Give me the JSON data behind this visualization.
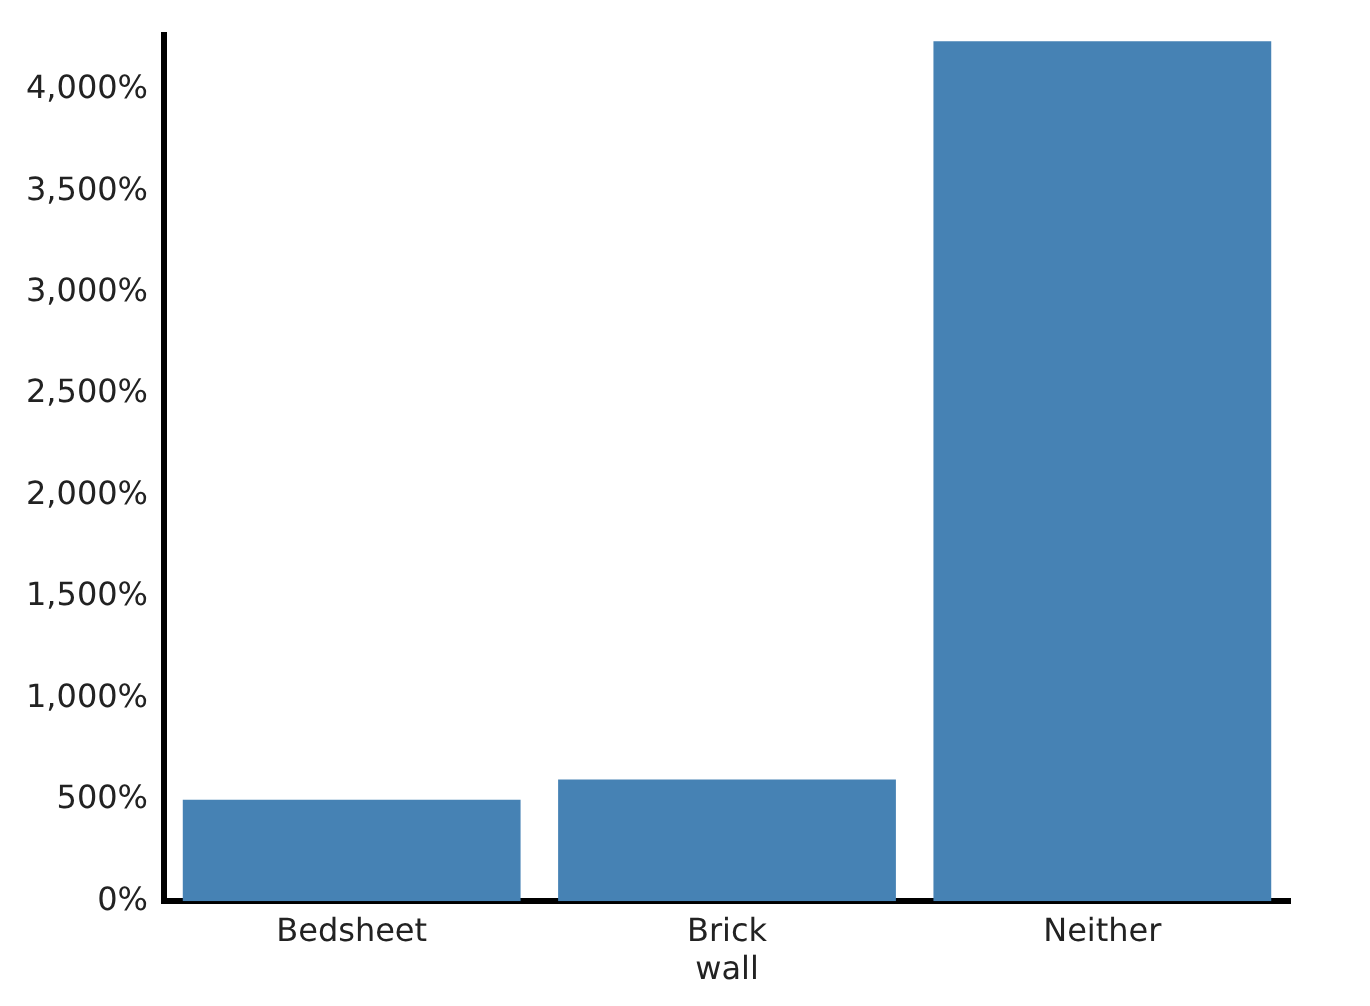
{
  "chart_data": {
    "type": "bar",
    "categories": [
      "Bedsheet",
      "Brick wall",
      "Neither"
    ],
    "values": [
      500,
      600,
      4240
    ],
    "color": "#4682b4",
    "ylim": [
      0,
      4270
    ],
    "yticks": [
      {
        "value": 0,
        "label": "0%"
      },
      {
        "value": 500,
        "label": "500%"
      },
      {
        "value": 1000,
        "label": "1,000%"
      },
      {
        "value": 1500,
        "label": "1,500%"
      },
      {
        "value": 2000,
        "label": "2,000%"
      },
      {
        "value": 2500,
        "label": "2,500%"
      },
      {
        "value": 3000,
        "label": "3,000%"
      },
      {
        "value": 3500,
        "label": "3,500%"
      },
      {
        "value": 4000,
        "label": "4,000%"
      }
    ],
    "grid": false,
    "legend": false
  }
}
